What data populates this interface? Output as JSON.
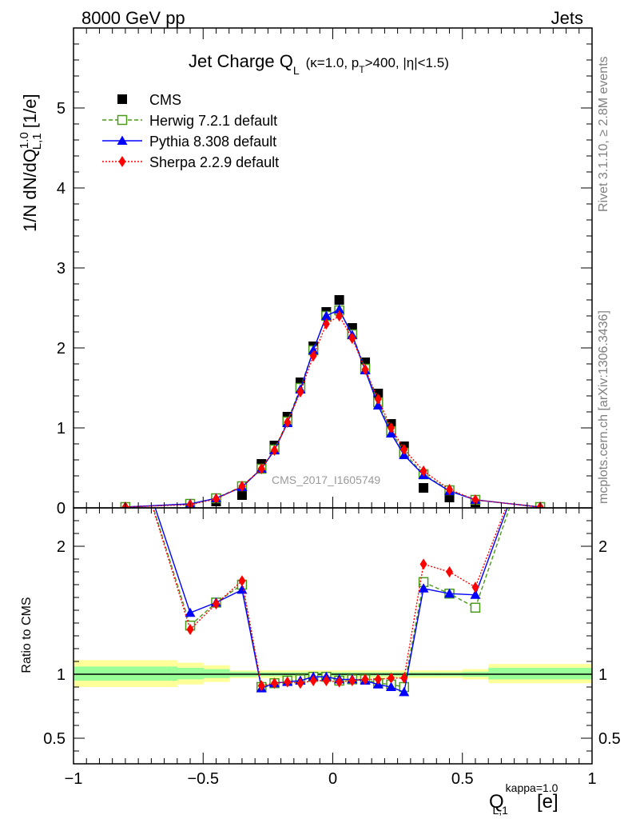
{
  "header": {
    "energy": "8000 GeV pp",
    "process": "Jets",
    "title_main": "Jet Charge Q",
    "title_sub": "L",
    "title_cond": "(κ=1.0, p",
    "title_cond_sub": "T",
    "title_cond_rest": ">400, |η|<1.5)"
  },
  "side_text": {
    "rivet": "Rivet 3.1.10, ≥ 2.8M events",
    "mcplots": "mcplots.cern.ch [arXiv:1306.3436]"
  },
  "watermark": "CMS_2017_I1605749",
  "labels": {
    "ylabel_top": "1/N dN/dQ",
    "ylabel_top_sup": "1.0",
    "ylabel_top_sub": "L,1",
    "ylabel_top_unit": " [1/e]",
    "ylabel_bottom": "Ratio to CMS",
    "xlabel": "Q",
    "xlabel_sup": "kappa=1.0",
    "xlabel_sub": "L,1",
    "xlabel_unit": "[e]"
  },
  "chart_data": [
    {
      "type": "line",
      "panel": "main",
      "xlim": [
        -1.0,
        1.0
      ],
      "ylim": [
        0,
        6
      ],
      "yticks": [
        0,
        1,
        2,
        3,
        4,
        5
      ],
      "legend_position": "top-left",
      "x": [
        -0.8,
        -0.55,
        -0.45,
        -0.35,
        -0.275,
        -0.225,
        -0.175,
        -0.125,
        -0.075,
        -0.025,
        0.025,
        0.075,
        0.125,
        0.175,
        0.225,
        0.275,
        0.35,
        0.45,
        0.55,
        0.8
      ],
      "series": [
        {
          "name": "CMS",
          "color": "#000000",
          "marker": "square",
          "values": [
            0.01,
            0.03,
            0.08,
            0.16,
            0.55,
            0.78,
            1.14,
            1.57,
            2.02,
            2.45,
            2.6,
            2.25,
            1.82,
            1.43,
            1.05,
            0.77,
            0.25,
            0.13,
            0.07,
            0.01
          ]
        },
        {
          "name": "Herwig 7.2.1 default",
          "color": "#4a9a1a",
          "marker": "open-square",
          "dash": "5,3",
          "values": [
            0.01,
            0.05,
            0.12,
            0.27,
            0.49,
            0.73,
            1.08,
            1.5,
            1.97,
            2.4,
            2.47,
            2.17,
            1.74,
            1.32,
            0.96,
            0.69,
            0.42,
            0.22,
            0.1,
            0.01
          ]
        },
        {
          "name": "Pythia 8.308 default",
          "color": "#0000ff",
          "marker": "triangle",
          "values": [
            0.01,
            0.05,
            0.12,
            0.26,
            0.49,
            0.72,
            1.06,
            1.48,
            1.97,
            2.4,
            2.48,
            2.16,
            1.72,
            1.28,
            0.93,
            0.66,
            0.41,
            0.21,
            0.1,
            0.01
          ]
        },
        {
          "name": "Sherpa 2.2.9 default",
          "color": "#ff0000",
          "marker": "diamond",
          "dash": "2,2",
          "values": [
            0.01,
            0.04,
            0.11,
            0.27,
            0.49,
            0.72,
            1.07,
            1.45,
            1.9,
            2.3,
            2.4,
            2.12,
            1.73,
            1.36,
            1.0,
            0.73,
            0.46,
            0.23,
            0.1,
            0.01
          ]
        }
      ]
    },
    {
      "type": "line",
      "panel": "ratio",
      "xlim": [
        -1.0,
        1.0
      ],
      "xticks": [
        -1,
        -0.5,
        0,
        0.5,
        1
      ],
      "ylim": [
        0.3,
        2.3
      ],
      "yticks": [
        0.5,
        1,
        2
      ],
      "reference": 1,
      "x": [
        -0.8,
        -0.55,
        -0.45,
        -0.35,
        -0.275,
        -0.225,
        -0.175,
        -0.125,
        -0.075,
        -0.025,
        0.025,
        0.075,
        0.125,
        0.175,
        0.225,
        0.275,
        0.35,
        0.45,
        0.55,
        0.8
      ],
      "bands": {
        "x_edges": [
          -1.0,
          -0.6,
          -0.5,
          -0.4,
          -0.3,
          -0.25,
          -0.2,
          -0.15,
          -0.1,
          -0.05,
          0.0,
          0.05,
          0.1,
          0.15,
          0.2,
          0.25,
          0.3,
          0.4,
          0.5,
          0.6,
          1.0
        ],
        "yellow": {
          "color": "#ffff99",
          "lo": [
            0.9,
            0.92,
            0.94,
            0.97,
            0.97,
            0.97,
            0.97,
            0.97,
            0.97,
            0.97,
            0.97,
            0.97,
            0.97,
            0.97,
            0.97,
            0.97,
            0.97,
            0.97,
            0.96,
            0.93
          ],
          "hi": [
            1.11,
            1.09,
            1.07,
            1.03,
            1.03,
            1.03,
            1.03,
            1.03,
            1.03,
            1.03,
            1.03,
            1.03,
            1.03,
            1.03,
            1.03,
            1.03,
            1.03,
            1.03,
            1.04,
            1.08
          ]
        },
        "green": {
          "color": "#99ff99",
          "lo": [
            0.95,
            0.96,
            0.97,
            0.98,
            0.985,
            0.985,
            0.985,
            0.985,
            0.985,
            0.985,
            0.985,
            0.985,
            0.985,
            0.985,
            0.985,
            0.985,
            0.985,
            0.985,
            0.98,
            0.96
          ],
          "hi": [
            1.06,
            1.05,
            1.04,
            1.02,
            1.015,
            1.015,
            1.015,
            1.015,
            1.015,
            1.015,
            1.015,
            1.015,
            1.015,
            1.015,
            1.015,
            1.015,
            1.015,
            1.015,
            1.02,
            1.05
          ]
        }
      },
      "series": [
        {
          "name": "Herwig 7.2.1 default",
          "color": "#4a9a1a",
          "marker": "open-square",
          "dash": "5,3",
          "values": [
            3.0,
            1.38,
            1.56,
            1.7,
            0.9,
            0.93,
            0.95,
            0.96,
            0.98,
            0.98,
            0.95,
            0.96,
            0.96,
            0.93,
            0.92,
            0.9,
            1.72,
            1.63,
            1.52,
            3.0
          ]
        },
        {
          "name": "Pythia 8.308 default",
          "color": "#0000ff",
          "marker": "triangle",
          "values": [
            3.0,
            1.48,
            1.56,
            1.66,
            0.89,
            0.93,
            0.94,
            0.95,
            0.98,
            0.98,
            0.96,
            0.96,
            0.95,
            0.92,
            0.9,
            0.86,
            1.67,
            1.63,
            1.62,
            3.0
          ]
        },
        {
          "name": "Sherpa 2.2.9 default",
          "color": "#ff0000",
          "marker": "diamond",
          "dash": "2,2",
          "values": [
            3.0,
            1.35,
            1.55,
            1.73,
            0.91,
            0.93,
            0.94,
            0.93,
            0.95,
            0.95,
            0.94,
            0.95,
            0.96,
            0.96,
            0.97,
            0.97,
            1.86,
            1.8,
            1.68,
            3.0
          ]
        }
      ]
    }
  ]
}
